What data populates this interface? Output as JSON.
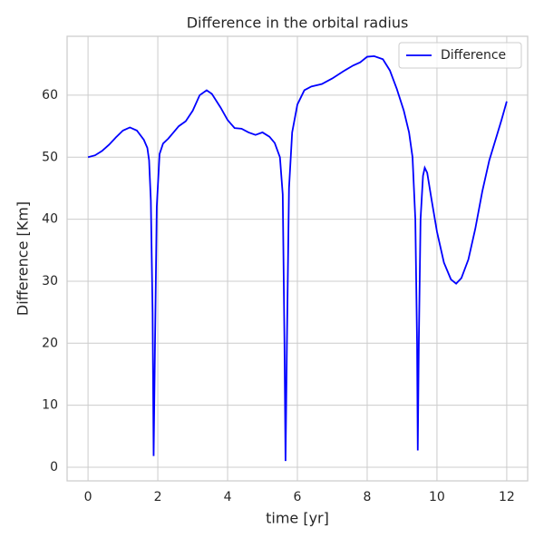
{
  "chart_data": {
    "type": "line",
    "title": "Difference in the orbital radius",
    "xlabel": "time [yr]",
    "ylabel": "Difference [Km]",
    "x": [
      0,
      0.2,
      0.4,
      0.6,
      0.8,
      1.0,
      1.2,
      1.4,
      1.6,
      1.7,
      1.75,
      1.8,
      1.85,
      1.88,
      1.92,
      1.97,
      2.05,
      2.15,
      2.3,
      2.45,
      2.6,
      2.8,
      3.0,
      3.2,
      3.4,
      3.55,
      3.8,
      4.0,
      4.2,
      4.4,
      4.6,
      4.8,
      5.0,
      5.2,
      5.35,
      5.5,
      5.58,
      5.63,
      5.66,
      5.7,
      5.76,
      5.85,
      6.0,
      6.2,
      6.4,
      6.7,
      7.0,
      7.3,
      7.6,
      7.8,
      8.0,
      8.2,
      8.45,
      8.65,
      8.85,
      9.05,
      9.2,
      9.3,
      9.38,
      9.43,
      9.45,
      9.48,
      9.53,
      9.6,
      9.65,
      9.72,
      9.85,
      10.0,
      10.2,
      10.4,
      10.55,
      10.7,
      10.9,
      11.1,
      11.3,
      11.5,
      11.7,
      11.85,
      12.0
    ],
    "series": [
      {
        "name": "Difference",
        "color": "#0000ff",
        "values": [
          50,
          50.3,
          51,
          52,
          53.2,
          54.3,
          54.8,
          54.3,
          52.8,
          51.5,
          49.5,
          43,
          25,
          1.8,
          20,
          42,
          50.5,
          52.2,
          53,
          54,
          55,
          55.8,
          57.5,
          60,
          60.8,
          60.2,
          58,
          56,
          54.7,
          54.6,
          54,
          53.6,
          54,
          53.3,
          52.3,
          50,
          44,
          20,
          1,
          20,
          45,
          54,
          58.5,
          60.8,
          61.4,
          61.8,
          62.7,
          63.8,
          64.8,
          65.3,
          66.2,
          66.3,
          65.8,
          64,
          61,
          57.5,
          54,
          50,
          40,
          20,
          2.7,
          20,
          40,
          47,
          48.3,
          47.5,
          43,
          38,
          33,
          30.3,
          29.6,
          30.5,
          33.5,
          38.5,
          44.5,
          49.5,
          53.2,
          56,
          59
        ]
      }
    ],
    "xlim": [
      -0.6,
      12.6
    ],
    "ylim": [
      -2.2,
      69.5
    ],
    "xticks": [
      0,
      2,
      4,
      6,
      8,
      10,
      12
    ],
    "yticks": [
      0,
      10,
      20,
      30,
      40,
      50,
      60
    ],
    "grid": true,
    "legend": "upper right"
  }
}
